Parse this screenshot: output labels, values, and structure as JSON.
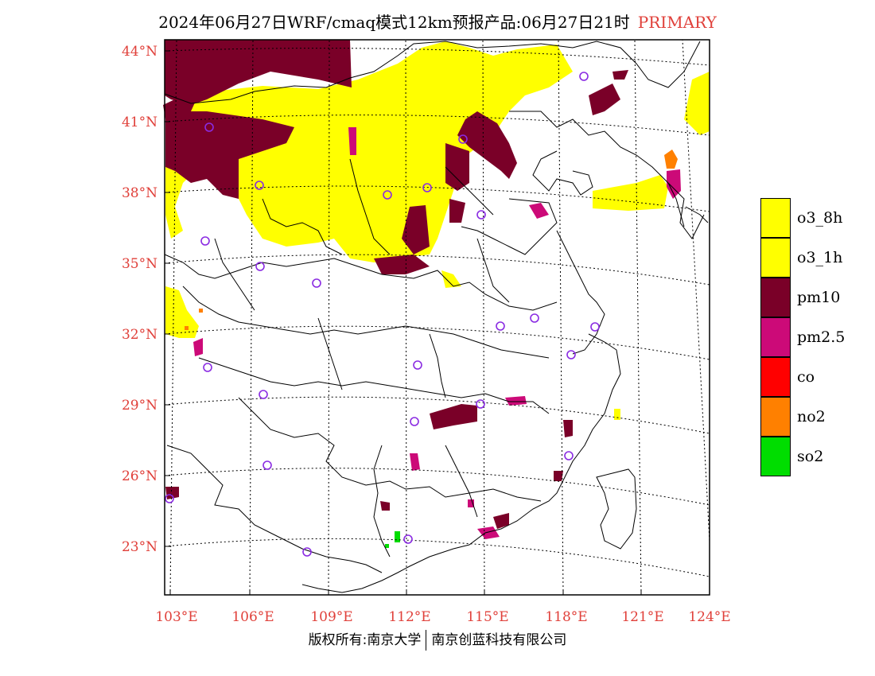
{
  "title": {
    "main": "2024年06月27日WRF/cmaq模式12km预报产品:06月27日21时",
    "tag": "PRIMARY"
  },
  "lat_labels": [
    "44°N",
    "41°N",
    "38°N",
    "35°N",
    "32°N",
    "29°N",
    "26°N",
    "23°N"
  ],
  "lon_labels": [
    "103°E",
    "106°E",
    "109°E",
    "112°E",
    "115°E",
    "118°E",
    "121°E",
    "124°E"
  ],
  "legend": [
    {
      "label": "o3_8h",
      "color": "#ffff00"
    },
    {
      "label": "o3_1h",
      "color": "#ffff00"
    },
    {
      "label": "pm10",
      "color": "#7a0028"
    },
    {
      "label": "pm2.5",
      "color": "#cc0a78"
    },
    {
      "label": "co",
      "color": "#ff0000"
    },
    {
      "label": "no2",
      "color": "#ff8000"
    },
    {
      "label": "so2",
      "color": "#00dd00"
    }
  ],
  "copyright": {
    "left": "版权所有:南京大学",
    "right": "南京创蓝科技有限公司"
  },
  "colors": {
    "label_red": "#e0403a",
    "station_circle": "#8a2be2"
  }
}
